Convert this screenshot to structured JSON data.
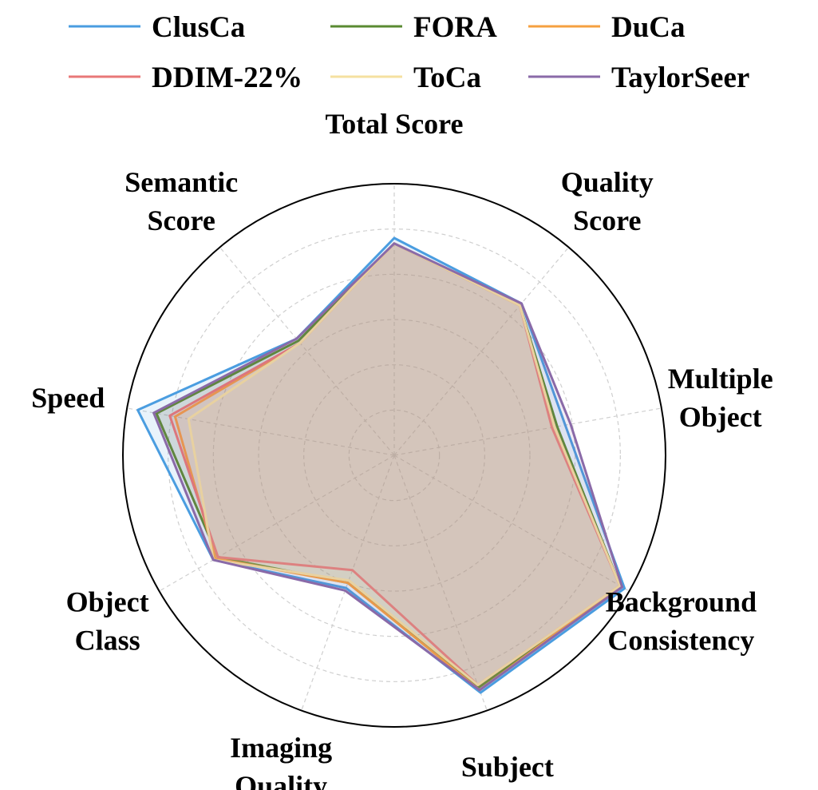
{
  "chart_data": {
    "type": "radar",
    "title": "",
    "axes": [
      "Total Score",
      "Quality Score",
      "Multiple Object",
      "Background Consistency",
      "Subject",
      "Imaging Quality",
      "Object Class",
      "Speed",
      "Semantic Score"
    ],
    "axis_labels_display": [
      [
        "Total Score"
      ],
      [
        "Quality",
        "Score"
      ],
      [
        "Multiple",
        "Object"
      ],
      [
        "Background",
        "Consistency"
      ],
      [
        "Subject"
      ],
      [
        "Imaging",
        "Quality"
      ],
      [
        "Object",
        "Class"
      ],
      [
        "Speed"
      ],
      [
        "Semantic",
        "Score"
      ]
    ],
    "rlim": [
      0,
      1
    ],
    "grid": true,
    "grid_rings": 6,
    "legend_position": "top",
    "series": [
      {
        "name": "ClusCa",
        "color": "#4a9de0",
        "values": [
          0.8,
          0.73,
          0.64,
          0.98,
          0.93,
          0.52,
          0.77,
          0.96,
          0.56
        ]
      },
      {
        "name": "FORA",
        "color": "#5a8a32",
        "values": [
          0.78,
          0.72,
          0.61,
          0.96,
          0.91,
          0.5,
          0.75,
          0.89,
          0.55
        ]
      },
      {
        "name": "DuCa",
        "color": "#f5a040",
        "values": [
          0.78,
          0.72,
          0.6,
          0.96,
          0.92,
          0.5,
          0.76,
          0.82,
          0.54
        ]
      },
      {
        "name": "DDIM-22%",
        "color": "#e87878",
        "values": [
          0.78,
          0.72,
          0.59,
          0.96,
          0.9,
          0.45,
          0.75,
          0.84,
          0.54
        ]
      },
      {
        "name": "ToCa",
        "color": "#f5e0a0",
        "values": [
          0.78,
          0.72,
          0.6,
          0.96,
          0.9,
          0.49,
          0.77,
          0.77,
          0.54
        ]
      },
      {
        "name": "TaylorSeer",
        "color": "#8a6aa8",
        "values": [
          0.78,
          0.73,
          0.66,
          0.97,
          0.92,
          0.53,
          0.77,
          0.9,
          0.56
        ]
      }
    ]
  }
}
